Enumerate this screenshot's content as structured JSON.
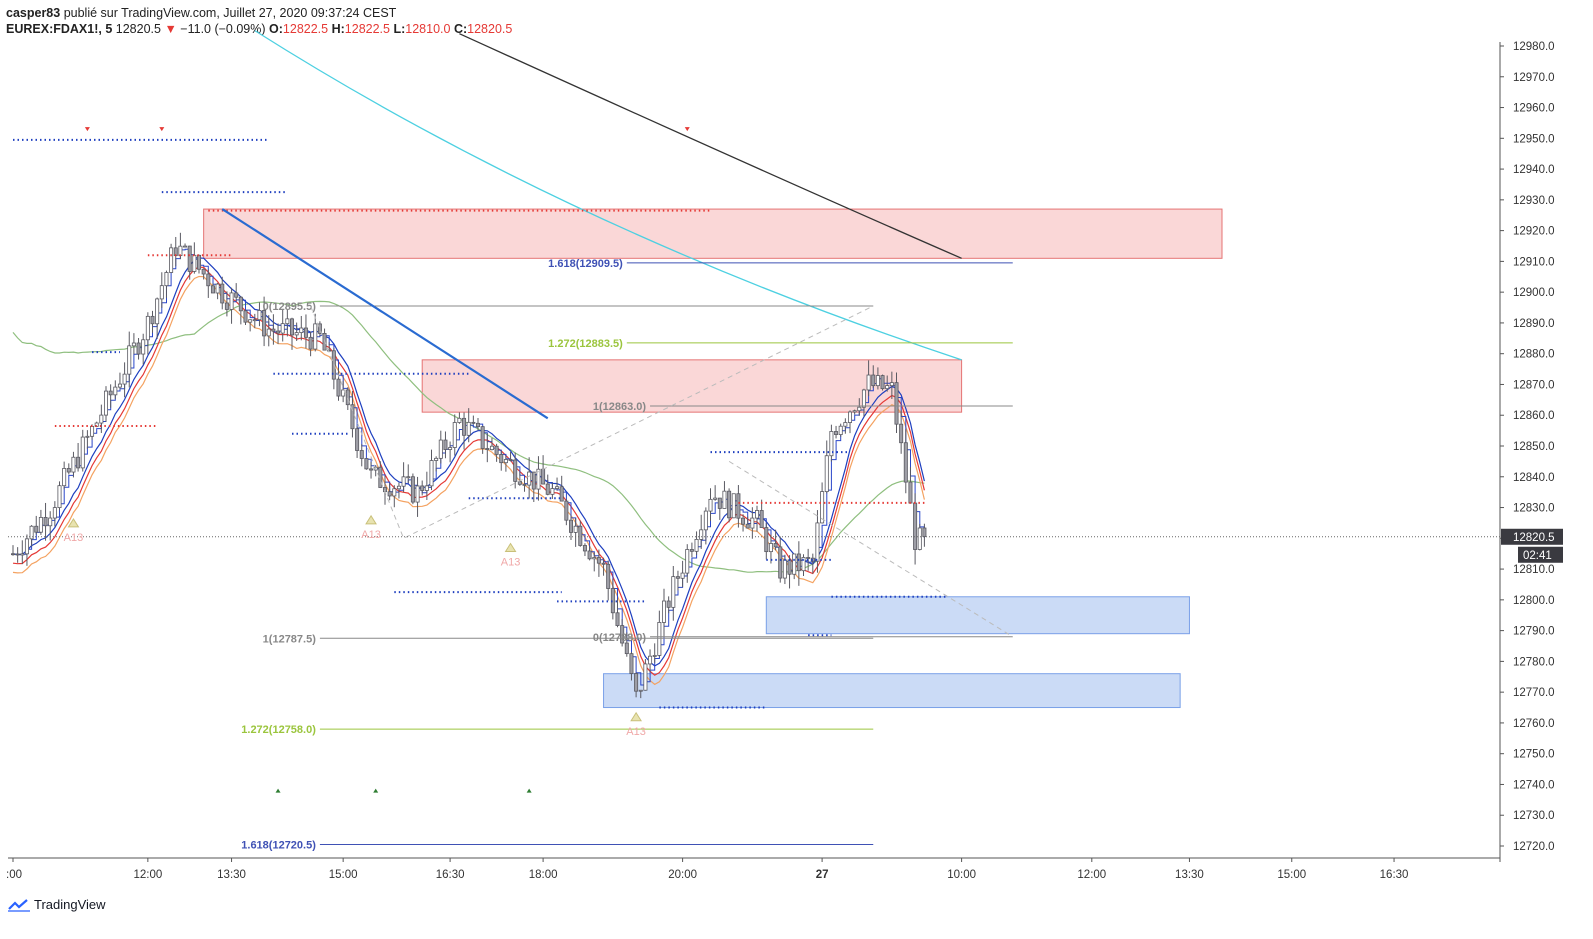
{
  "header": {
    "author": "casper83",
    "published": "publié sur TradingView.com, Juillet 27, 2020 09:37:24 CEST",
    "symbol": "EUREX:FDAX1!, 5",
    "last": "12820.5",
    "change": "−11.0 (−0.09%)",
    "o_label": "O:",
    "o": "12822.5",
    "h_label": "H:",
    "h": "12822.5",
    "l_label": "L:",
    "l": "12810.0",
    "c_label": "C:",
    "c": "12820.5"
  },
  "footer": {
    "brand": "TradingView"
  },
  "colors": {
    "up": "#4caf50",
    "down": "#e53935",
    "candle": "#9e9ea6",
    "supply_zone": "#f8c9c9",
    "demand_zone": "#b9cff3",
    "fib_gray": "#888888",
    "fib_green": "#9bc53d",
    "fib_blue": "#3f51b5"
  },
  "chart_data": {
    "type": "candlestick",
    "ylim": [
      12716,
      12984
    ],
    "y_ticks": [
      "12720.0",
      "12730.0",
      "12740.0",
      "12750.0",
      "12760.0",
      "12770.0",
      "12780.0",
      "12790.0",
      "12800.0",
      "12810.0",
      "12820.0",
      "12830.0",
      "12840.0",
      "12850.0",
      "12860.0",
      "12870.0",
      "12880.0",
      "12890.0",
      "12900.0",
      "12910.0",
      "12920.0",
      "12930.0",
      "12940.0",
      "12950.0",
      "12960.0",
      "12970.0",
      "12980.0"
    ],
    "x_ticks": [
      {
        "label": ":00",
        "bar": 0
      },
      {
        "label": "12:00",
        "bar": 29
      },
      {
        "label": "13:30",
        "bar": 47
      },
      {
        "label": "15:00",
        "bar": 71
      },
      {
        "label": "16:30",
        "bar": 94
      },
      {
        "label": "18:00",
        "bar": 114
      },
      {
        "label": "20:00",
        "bar": 144
      },
      {
        "label": "27",
        "bar": 174,
        "bold": true
      },
      {
        "label": "10:00",
        "bar": 204
      },
      {
        "label": "12:00",
        "bar": 232
      },
      {
        "label": "13:30",
        "bar": 253
      },
      {
        "label": "15:00",
        "bar": 275
      },
      {
        "label": "16:30",
        "bar": 297
      }
    ],
    "last_price": "12820.5",
    "countdown": "02:41",
    "fib_levels": [
      {
        "label": "0(12895.5)",
        "value": 12895.5,
        "x0": 66,
        "x1": 185,
        "color": "#888888"
      },
      {
        "label": "1(12863.0)",
        "value": 12863.0,
        "x0": 137,
        "x1": 215,
        "color": "#888888"
      },
      {
        "label": "1.272(12883.5)",
        "value": 12883.5,
        "x0": 132,
        "x1": 215,
        "color": "#9bc53d"
      },
      {
        "label": "1.618(12909.5)",
        "value": 12909.5,
        "x0": 132,
        "x1": 215,
        "color": "#3f51b5"
      },
      {
        "label": "1(12787.5)",
        "value": 12787.5,
        "x0": 66,
        "x1": 185,
        "color": "#888888"
      },
      {
        "label": "0(12788.0)",
        "value": 12788.0,
        "x0": 137,
        "x1": 215,
        "color": "#888888"
      },
      {
        "label": "1.272(12758.0)",
        "value": 12758.0,
        "x0": 66,
        "x1": 185,
        "color": "#9bc53d"
      },
      {
        "label": "1.618(12720.5)",
        "value": 12720.5,
        "x0": 66,
        "x1": 185,
        "color": "#3f51b5"
      }
    ],
    "zones": [
      {
        "kind": "supply",
        "y_top": 12927,
        "y_bottom": 12911,
        "x0": 41,
        "x1": 260
      },
      {
        "kind": "supply",
        "y_top": 12878,
        "y_bottom": 12861,
        "x0": 88,
        "x1": 204
      },
      {
        "kind": "demand",
        "y_top": 12801,
        "y_bottom": 12789,
        "x0": 162,
        "x1": 253
      },
      {
        "kind": "demand",
        "y_top": 12776,
        "y_bottom": 12765,
        "x0": 127,
        "x1": 251
      }
    ],
    "markers": [
      {
        "text": "A13",
        "bar": 13,
        "value": 12825
      },
      {
        "text": "A13",
        "bar": 77,
        "value": 12826
      },
      {
        "text": "A13",
        "bar": 107,
        "value": 12817
      },
      {
        "text": "A13",
        "bar": 134,
        "value": 12762
      }
    ]
  }
}
